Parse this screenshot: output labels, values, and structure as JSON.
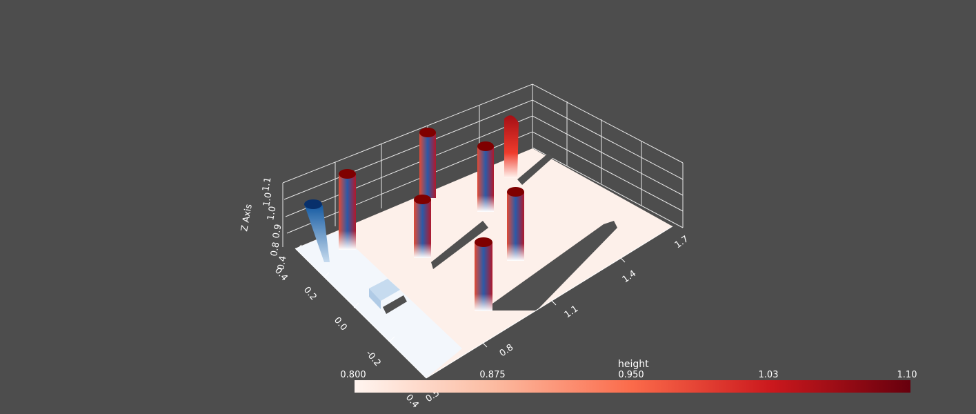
{
  "chart_data": {
    "type": "3d-surface",
    "colorbar": {
      "title": "height",
      "ticks": [
        "0.800",
        "0.875",
        "0.950",
        "1.03",
        "1.10"
      ],
      "range": [
        0.8,
        1.1
      ],
      "colormap": "Reds",
      "colors": [
        "#fff5f0",
        "#fcbba1",
        "#fb6a4a",
        "#cb181d",
        "#67000d"
      ]
    },
    "axes": {
      "x": {
        "label": "",
        "ticks": [
          "0.5",
          "0.8",
          "1.1",
          "1.4",
          "1.7"
        ]
      },
      "y": {
        "label": "",
        "ticks": [
          "0.4",
          "0.2",
          "0.0",
          "-0.2",
          "0.4"
        ]
      },
      "z": {
        "label": "Z Axis",
        "ticks": [
          "0.4",
          "0.8",
          "0.9",
          "1.0",
          "1.0",
          "1.1"
        ]
      }
    },
    "background_color": "#4d4d4d",
    "grid": true
  }
}
